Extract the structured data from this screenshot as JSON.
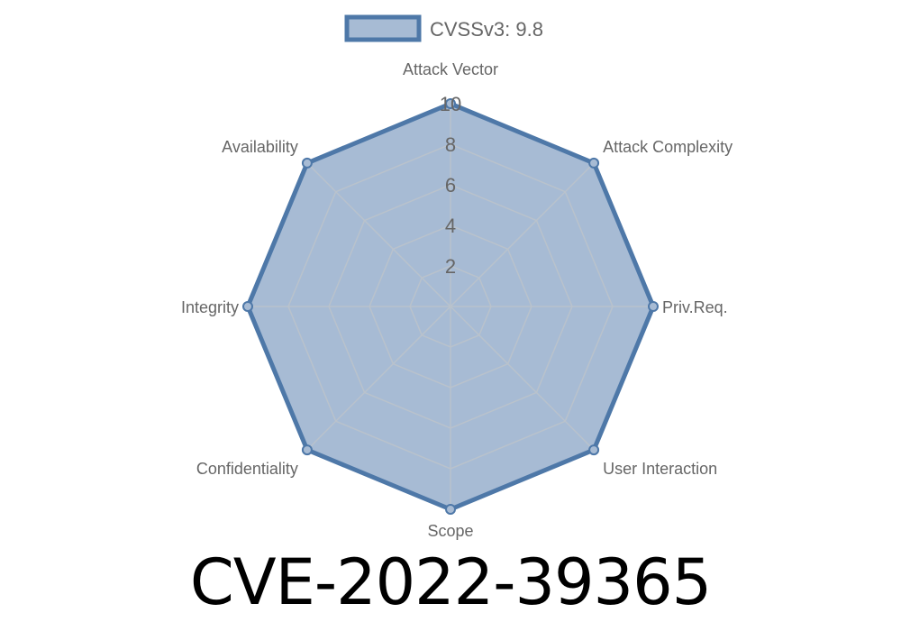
{
  "chart_data": {
    "type": "radar",
    "categories": [
      "Attack Vector",
      "Attack Complexity",
      "Priv.Req.",
      "User Interaction",
      "Scope",
      "Confidentiality",
      "Integrity",
      "Availability"
    ],
    "series": [
      {
        "name": "CVSSv3: 9.8",
        "values": [
          10,
          10,
          10,
          10,
          10,
          10,
          10,
          10
        ]
      }
    ],
    "rlim": [
      0,
      10
    ],
    "ticks": [
      "2",
      "4",
      "6",
      "8",
      "10"
    ],
    "tick_values": [
      2,
      4,
      6,
      8,
      10
    ],
    "grid": true,
    "legend_position": "top",
    "colors": {
      "stroke": "#4e78a8",
      "fill": "#a7bbd4",
      "grid": "#b9c2cc"
    }
  },
  "title": "CVE-2022-39365"
}
